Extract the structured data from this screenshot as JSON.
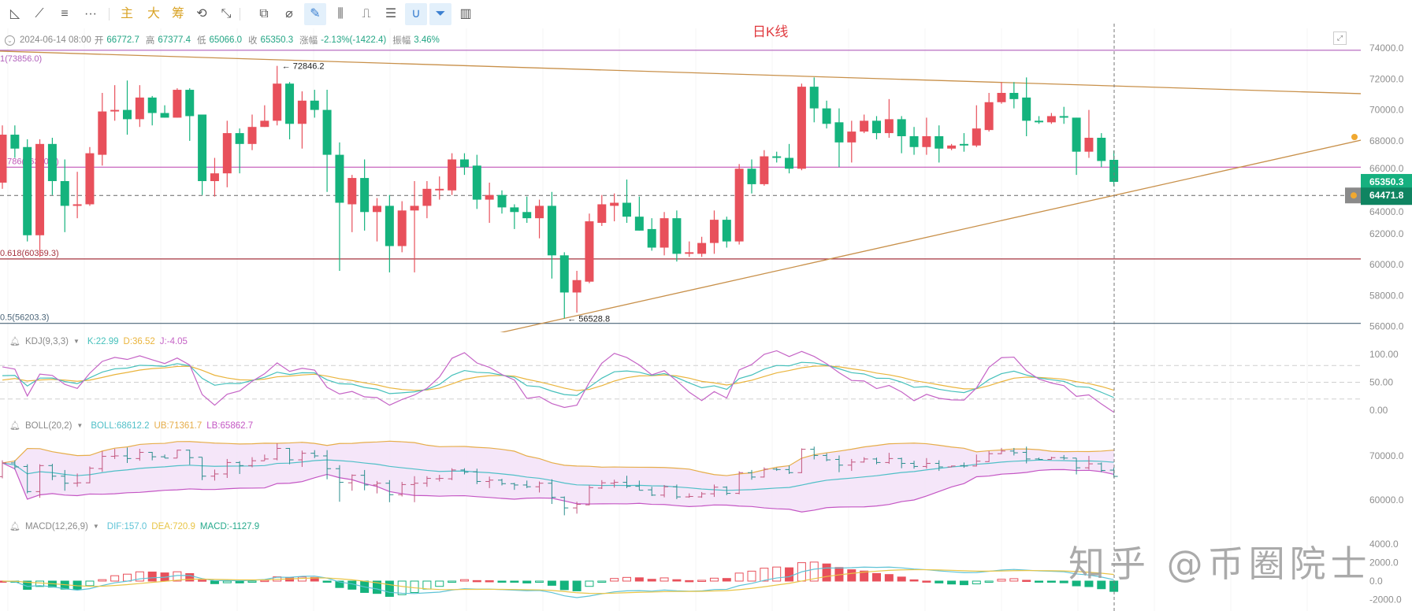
{
  "toolbar": {
    "items": [
      {
        "icon": "triangle-tool-icon",
        "glyph": "◺"
      },
      {
        "icon": "line-tool-icon",
        "glyph": "⟋"
      },
      {
        "icon": "parallel-lines-icon",
        "glyph": "≡"
      },
      {
        "icon": "more-icon",
        "glyph": "···"
      },
      {
        "icon": "text-main",
        "glyph": "主",
        "text": true
      },
      {
        "icon": "text-big",
        "glyph": "大",
        "text": true
      },
      {
        "icon": "text-chip",
        "glyph": "筹",
        "text": true
      },
      {
        "icon": "rotate-edit-icon",
        "glyph": "⟲"
      },
      {
        "icon": "line-star-icon",
        "glyph": "⤡"
      },
      {
        "icon": "bookmark-icon",
        "glyph": "⧉"
      },
      {
        "icon": "ruler-icon",
        "glyph": "⌀"
      },
      {
        "icon": "pencil-icon",
        "glyph": "✎",
        "highlight": true
      },
      {
        "icon": "candles-icon",
        "glyph": "⫼"
      },
      {
        "icon": "clipboard-icon",
        "glyph": "⎍"
      },
      {
        "icon": "note-edit-icon",
        "glyph": "☰"
      },
      {
        "icon": "magnet-icon",
        "glyph": "∪",
        "highlight": true
      },
      {
        "icon": "filter-icon",
        "glyph": "⏷",
        "highlight": true
      },
      {
        "icon": "trash-icon",
        "glyph": "▥"
      }
    ]
  },
  "title": "日K线",
  "info": {
    "date": "2024-06-14 08:00",
    "open_label": "开",
    "open": "66772.7",
    "high_label": "高",
    "high": "67377.4",
    "low_label": "低",
    "low": "65066.0",
    "close_label": "收",
    "close": "65350.3",
    "change_label": "涨幅",
    "change": "-2.13%(-1422.4)",
    "amp_label": "振幅",
    "amp": "3.46%"
  },
  "annotations": {
    "fib_levels": [
      {
        "label": "1(73856.0)",
        "value": 73856.0,
        "color": "#b15fbb"
      },
      {
        "label": "0.786(66300.6)",
        "value": 66300.6,
        "color": "#c256b8"
      },
      {
        "label": "0.618(60369.3)",
        "value": 60369.3,
        "color": "#a5333f"
      },
      {
        "label": "0.5(56203.3)",
        "value": 56203.3,
        "color": "#4a6478"
      }
    ],
    "high_marker": "72846.2",
    "low_marker": "56528.8",
    "current_price": "65350.3",
    "cursor_price": "64471.8",
    "trendlines": [
      {
        "from": {
          "index": -0.2,
          "price": 73800
        },
        "to": {
          "index": 108.8,
          "price": 71050
        },
        "color": "#c8904a"
      },
      {
        "from": {
          "index": 39.2,
          "price": 55480
        },
        "to": {
          "index": 108.8,
          "price": 68050
        },
        "color": "#c8904a"
      }
    ]
  },
  "colors": {
    "up": "#e8505b",
    "down": "#14b37d",
    "grid": "#f4f4f4",
    "axis_text": "#8f8f8f"
  },
  "chart_data": [
    {
      "type": "candlestick",
      "y_ticks": [
        "74000.0",
        "72000.0",
        "70000.0",
        "68000.0",
        "66000.0",
        "64000.0",
        "62000.0",
        "60000.0",
        "58000.0",
        "56000.0"
      ],
      "ylim": [
        55400,
        74400
      ],
      "ohlc": [
        [
          65300,
          69000,
          64900,
          68400
        ],
        [
          68400,
          69000,
          66900,
          67500
        ],
        [
          67600,
          68100,
          61500,
          61900
        ],
        [
          61900,
          68100,
          60500,
          67800
        ],
        [
          67800,
          68200,
          64500,
          65400
        ],
        [
          65400,
          66800,
          62100,
          63800
        ],
        [
          63800,
          66000,
          63000,
          63900
        ],
        [
          63900,
          67600,
          63800,
          67200
        ],
        [
          67100,
          71100,
          66400,
          69900
        ],
        [
          69900,
          71600,
          69300,
          70000
        ],
        [
          70000,
          71900,
          68400,
          69400
        ],
        [
          69400,
          71600,
          68900,
          70800
        ],
        [
          70800,
          70900,
          69000,
          69800
        ],
        [
          69800,
          70300,
          69500,
          69500
        ],
        [
          69500,
          71400,
          69500,
          71300
        ],
        [
          71300,
          71400,
          68000,
          69600
        ],
        [
          69700,
          69700,
          64500,
          65400
        ],
        [
          65400,
          66900,
          64400,
          65900
        ],
        [
          65900,
          69300,
          65000,
          68500
        ],
        [
          68500,
          68800,
          65900,
          67800
        ],
        [
          67800,
          69700,
          67400,
          68900
        ],
        [
          68900,
          70300,
          68900,
          69300
        ],
        [
          69300,
          72846.2,
          69000,
          71700
        ],
        [
          71700,
          71800,
          68100,
          69100
        ],
        [
          69100,
          71200,
          67500,
          70600
        ],
        [
          70600,
          71300,
          69500,
          70000
        ],
        [
          70000,
          71300,
          64700,
          67100
        ],
        [
          67100,
          67900,
          59600,
          64000
        ],
        [
          63900,
          65800,
          62100,
          65600
        ],
        [
          65600,
          66800,
          62200,
          63400
        ],
        [
          63400,
          64300,
          61500,
          63800
        ],
        [
          63800,
          64500,
          59500,
          61200
        ],
        [
          61200,
          64100,
          60800,
          63500
        ],
        [
          63500,
          65400,
          59500,
          63800
        ],
        [
          63800,
          65400,
          63000,
          64900
        ],
        [
          64800,
          65700,
          64200,
          64900
        ],
        [
          64800,
          67200,
          64500,
          66800
        ],
        [
          66800,
          67200,
          65800,
          66300
        ],
        [
          66400,
          67100,
          63600,
          64200
        ],
        [
          64200,
          65300,
          62700,
          64500
        ],
        [
          64500,
          64800,
          63300,
          63700
        ],
        [
          63700,
          63900,
          62300,
          63400
        ],
        [
          63400,
          64400,
          62700,
          63000
        ],
        [
          63000,
          64200,
          61700,
          63800
        ],
        [
          63800,
          64700,
          59100,
          60600
        ],
        [
          60600,
          60800,
          56528.8,
          58200
        ],
        [
          58200,
          59600,
          56900,
          59000
        ],
        [
          58900,
          63300,
          58800,
          62800
        ],
        [
          62700,
          64500,
          62500,
          63900
        ],
        [
          63800,
          64600,
          62800,
          64000
        ],
        [
          64000,
          65500,
          62700,
          63100
        ],
        [
          63100,
          64400,
          62200,
          62200
        ],
        [
          62300,
          63000,
          60900,
          61100
        ],
        [
          61100,
          63400,
          60600,
          63000
        ],
        [
          63000,
          63500,
          60200,
          60700
        ],
        [
          60700,
          61500,
          60500,
          60800
        ],
        [
          60700,
          61800,
          60500,
          61400
        ],
        [
          61400,
          63500,
          60700,
          62900
        ],
        [
          62900,
          63100,
          61100,
          61500
        ],
        [
          61500,
          66500,
          61300,
          66200
        ],
        [
          66200,
          66800,
          64600,
          65200
        ],
        [
          65200,
          67400,
          65100,
          67000
        ],
        [
          67000,
          67300,
          66600,
          66900
        ],
        [
          66900,
          67800,
          65900,
          66200
        ],
        [
          66200,
          71700,
          66100,
          71500
        ],
        [
          71500,
          72100,
          69200,
          70100
        ],
        [
          70100,
          70600,
          68800,
          69100
        ],
        [
          69200,
          70100,
          66300,
          67900
        ],
        [
          67900,
          69300,
          66600,
          68600
        ],
        [
          68600,
          69700,
          68500,
          69300
        ],
        [
          69300,
          69600,
          68100,
          68500
        ],
        [
          68500,
          70700,
          68200,
          69400
        ],
        [
          69400,
          69600,
          67200,
          68300
        ],
        [
          68300,
          68900,
          67100,
          67600
        ],
        [
          67600,
          69500,
          67100,
          68300
        ],
        [
          68300,
          69000,
          66600,
          67500
        ],
        [
          67500,
          67800,
          67400,
          67700
        ],
        [
          67800,
          68500,
          67300,
          67700
        ],
        [
          67700,
          70300,
          67600,
          68800
        ],
        [
          68700,
          71100,
          68600,
          70500
        ],
        [
          70500,
          71800,
          70400,
          71100
        ],
        [
          71100,
          71800,
          70100,
          70700
        ],
        [
          70800,
          72100,
          68300,
          69300
        ],
        [
          69300,
          69600,
          69100,
          69200
        ],
        [
          69200,
          69800,
          69100,
          69600
        ],
        [
          69600,
          70200,
          69100,
          69500
        ],
        [
          69500,
          69500,
          65800,
          67300
        ],
        [
          67300,
          70000,
          66900,
          68200
        ],
        [
          68200,
          68500,
          66300,
          66700
        ],
        [
          66772.7,
          67377.4,
          65066.0,
          65350.3
        ]
      ]
    },
    {
      "type": "line",
      "indicator": "KDJ",
      "header": {
        "name": "KDJ(9,3,3)",
        "k": "K:22.99",
        "d": "D:36.52",
        "j": "J:-4.05"
      },
      "y_ticks": [
        "100.00",
        "50.00",
        "0.00"
      ],
      "levels": [
        80,
        50,
        20
      ],
      "colors": {
        "k": "#45c0bb",
        "d": "#eab43c",
        "j": "#c564c6"
      }
    },
    {
      "type": "line",
      "indicator": "BOLL",
      "header": {
        "name": "BOLL(20,2)",
        "boll": "BOLL:68612.2",
        "ub": "UB:71361.7",
        "lb": "LB:65862.7"
      },
      "y_ticks": [
        "70000.0",
        "60000.0"
      ],
      "colors": {
        "mid": "#4fbfc7",
        "ub": "#e6ad4a",
        "lb": "#c456c4",
        "fill": "#f3e2f8"
      }
    },
    {
      "type": "bar",
      "indicator": "MACD",
      "header": {
        "name": "MACD(12,26,9)",
        "dif": "DIF:157.0",
        "dea": "DEA:720.9",
        "macd": "MACD:-1127.9"
      },
      "y_ticks": [
        "4000.0",
        "2000.0",
        "0.0",
        "-2000.0"
      ],
      "colors": {
        "dif": "#5ec3d6",
        "dea": "#e8c547",
        "macd": "#26a98c"
      }
    }
  ],
  "watermark": "知乎 @币圈院士"
}
